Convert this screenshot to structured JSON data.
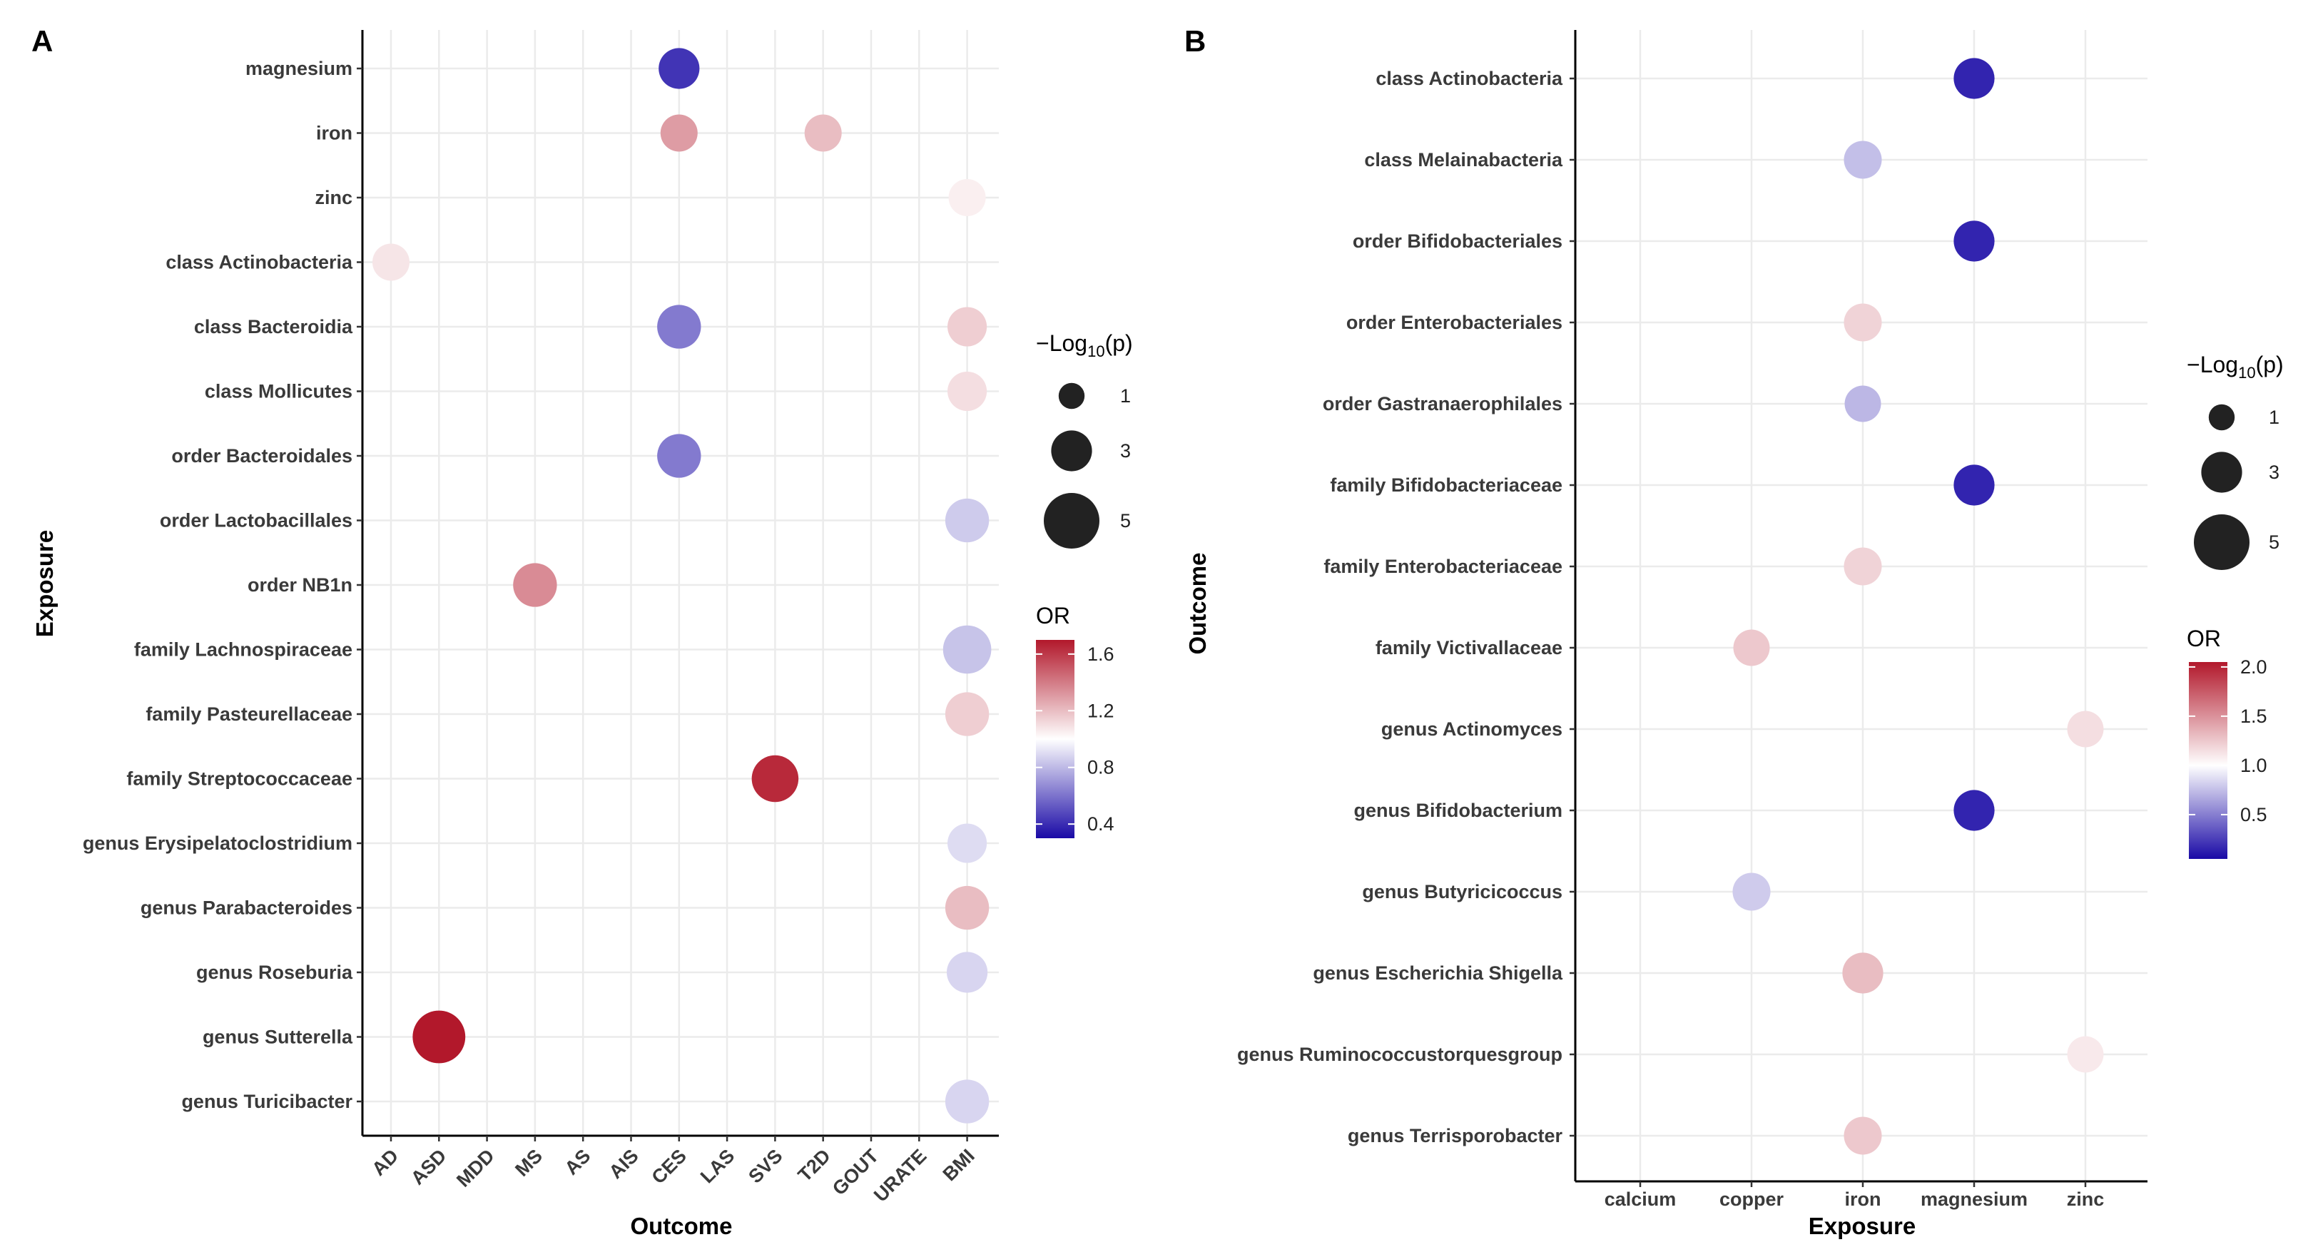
{
  "chart_data": [
    {
      "panel": "A",
      "type": "scatter",
      "subtype": "bubble",
      "xlabel": "Outcome",
      "ylabel": "Exposure",
      "x_categories": [
        "AD",
        "ASD",
        "MDD",
        "MS",
        "AS",
        "AIS",
        "CES",
        "LAS",
        "SVS",
        "T2D",
        "GOUT",
        "URATE",
        "BMI"
      ],
      "y_categories": [
        "magnesium",
        "iron",
        "zinc",
        "class Actinobacteria",
        "class Bacteroidia",
        "class Mollicutes",
        "order Bacteroidales",
        "order Lactobacillales",
        "order NB1n",
        "family Lachnospiraceae",
        "family Pasteurellaceae",
        "family Streptococcaceae",
        "genus Erysipelatoclostridium",
        "genus Parabacteroides",
        "genus Roseburia",
        "genus Sutterella",
        "genus Turicibacter"
      ],
      "points": [
        {
          "x": "CES",
          "y": "magnesium",
          "neglog10p": 3.0,
          "or": 0.42
        },
        {
          "x": "CES",
          "y": "iron",
          "neglog10p": 2.5,
          "or": 1.3
        },
        {
          "x": "T2D",
          "y": "iron",
          "neglog10p": 2.5,
          "or": 1.2
        },
        {
          "x": "BMI",
          "y": "zinc",
          "neglog10p": 2.5,
          "or": 1.05
        },
        {
          "x": "AD",
          "y": "class Actinobacteria",
          "neglog10p": 2.5,
          "or": 1.08
        },
        {
          "x": "CES",
          "y": "class Bacteroidia",
          "neglog10p": 3.4,
          "or": 0.62
        },
        {
          "x": "BMI",
          "y": "class Bacteroidia",
          "neglog10p": 2.8,
          "or": 1.15
        },
        {
          "x": "BMI",
          "y": "class Mollicutes",
          "neglog10p": 2.8,
          "or": 1.1
        },
        {
          "x": "CES",
          "y": "order Bacteroidales",
          "neglog10p": 3.4,
          "or": 0.62
        },
        {
          "x": "BMI",
          "y": "order Lactobacillales",
          "neglog10p": 3.4,
          "or": 0.85
        },
        {
          "x": "MS",
          "y": "order NB1n",
          "neglog10p": 3.4,
          "or": 1.35
        },
        {
          "x": "BMI",
          "y": "family Lachnospiraceae",
          "neglog10p": 4.0,
          "or": 0.83
        },
        {
          "x": "BMI",
          "y": "family Pasteurellaceae",
          "neglog10p": 3.4,
          "or": 1.15
        },
        {
          "x": "SVS",
          "y": "family Streptococcaceae",
          "neglog10p": 3.8,
          "or": 1.65
        },
        {
          "x": "BMI",
          "y": "genus Erysipelatoclostridium",
          "neglog10p": 2.8,
          "or": 0.9
        },
        {
          "x": "BMI",
          "y": "genus Parabacteroides",
          "neglog10p": 3.4,
          "or": 1.2
        },
        {
          "x": "BMI",
          "y": "genus Roseburia",
          "neglog10p": 3.0,
          "or": 0.88
        },
        {
          "x": "ASD",
          "y": "genus Sutterella",
          "neglog10p": 4.6,
          "or": 1.7
        },
        {
          "x": "BMI",
          "y": "genus Turicibacter",
          "neglog10p": 3.4,
          "or": 0.88
        }
      ],
      "size_legend": {
        "title": "−Log10(p)",
        "values": [
          1,
          3,
          5
        ]
      },
      "color_legend": {
        "title": "OR",
        "range": [
          0.3,
          1.7
        ],
        "ticks": [
          1.6,
          1.2,
          0.8,
          0.4
        ],
        "low_color": "#1a0aa6",
        "mid_color": "#ffffff",
        "high_color": "#b2182b"
      },
      "legend_position": "right",
      "grid": true
    },
    {
      "panel": "B",
      "type": "scatter",
      "subtype": "bubble",
      "xlabel": "Exposure",
      "ylabel": "Outcome",
      "x_categories": [
        "calcium",
        "copper",
        "iron",
        "magnesium",
        "zinc"
      ],
      "y_categories": [
        "class Actinobacteria",
        "class Melainabacteria",
        "order Bifidobacteriales",
        "order Enterobacteriales",
        "order Gastranaerophilales",
        "family Bifidobacteriaceae",
        "family Enterobacteriaceae",
        "family Victivallaceae",
        "genus Actinomyces",
        "genus Bifidobacterium",
        "genus Butyricicoccus",
        "genus Escherichia Shigella",
        "genus Ruminococcustorquesgroup",
        "genus Terrisporobacter"
      ],
      "points": [
        {
          "x": "magnesium",
          "y": "class Actinobacteria",
          "neglog10p": 3.0,
          "or": 0.15
        },
        {
          "x": "iron",
          "y": "class Melainabacteria",
          "neglog10p": 2.6,
          "or": 0.75
        },
        {
          "x": "magnesium",
          "y": "order Bifidobacteriales",
          "neglog10p": 3.0,
          "or": 0.15
        },
        {
          "x": "iron",
          "y": "order Enterobacteriales",
          "neglog10p": 2.6,
          "or": 1.2
        },
        {
          "x": "iron",
          "y": "order Gastranaerophilales",
          "neglog10p": 2.4,
          "or": 0.72
        },
        {
          "x": "magnesium",
          "y": "family Bifidobacteriaceae",
          "neglog10p": 3.0,
          "or": 0.15
        },
        {
          "x": "iron",
          "y": "family Enterobacteriaceae",
          "neglog10p": 2.6,
          "or": 1.2
        },
        {
          "x": "copper",
          "y": "family Victivallaceae",
          "neglog10p": 2.4,
          "or": 1.25
        },
        {
          "x": "zinc",
          "y": "genus Actinomyces",
          "neglog10p": 2.4,
          "or": 1.15
        },
        {
          "x": "magnesium",
          "y": "genus Bifidobacterium",
          "neglog10p": 3.0,
          "or": 0.15
        },
        {
          "x": "copper",
          "y": "genus Butyricicoccus",
          "neglog10p": 2.6,
          "or": 0.8
        },
        {
          "x": "iron",
          "y": "genus Escherichia Shigella",
          "neglog10p": 3.0,
          "or": 1.3
        },
        {
          "x": "zinc",
          "y": "genus Ruminococcustorquesgroup",
          "neglog10p": 2.4,
          "or": 1.1
        },
        {
          "x": "iron",
          "y": "genus Terrisporobacter",
          "neglog10p": 2.6,
          "or": 1.25
        }
      ],
      "size_legend": {
        "title": "−Log10(p)",
        "values": [
          1,
          3,
          5
        ]
      },
      "color_legend": {
        "title": "OR",
        "range": [
          0.05,
          2.05
        ],
        "ticks": [
          2.0,
          1.5,
          1.0,
          0.5
        ],
        "low_color": "#1a0aa6",
        "mid_color": "#ffffff",
        "high_color": "#b2182b"
      },
      "legend_position": "right",
      "grid": true
    }
  ]
}
